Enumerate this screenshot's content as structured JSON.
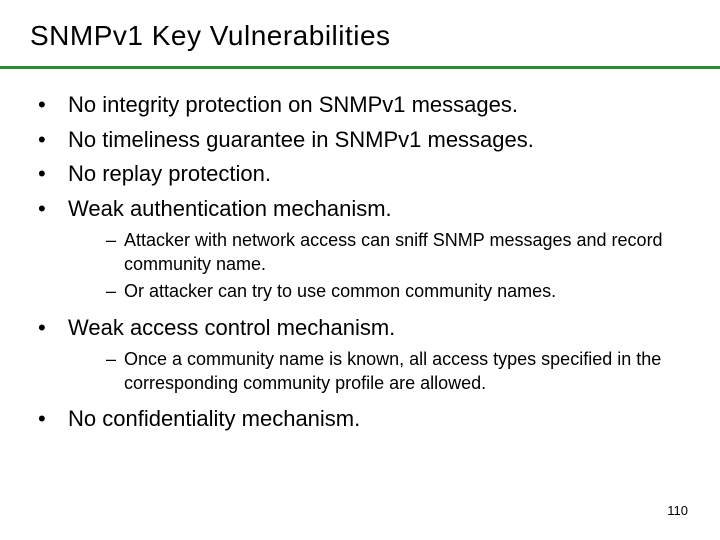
{
  "title": "SNMPv1 Key Vulnerabilities",
  "colors": {
    "divider": "#2d8a2d",
    "background": "#ffffff",
    "text": "#000000"
  },
  "typography": {
    "title_fontsize": 28,
    "bullet_fontsize": 22,
    "sub_fontsize": 18,
    "page_fontsize": 13
  },
  "bullets": [
    {
      "text": "No integrity protection on SNMPv1 messages.",
      "subs": []
    },
    {
      "text": "No timeliness guarantee in SNMPv1 messages.",
      "subs": []
    },
    {
      "text": "No replay protection.",
      "subs": []
    },
    {
      "text": "Weak authentication mechanism.",
      "subs": [
        "Attacker with network access can sniff SNMP messages and record community name.",
        "Or attacker can try to use common community names."
      ]
    },
    {
      "text": "Weak access control mechanism.",
      "subs": [
        "Once a community name is known, all access types specified in the corresponding community profile are allowed."
      ]
    },
    {
      "text": "No confidentiality mechanism.",
      "subs": []
    }
  ],
  "page_number": "110"
}
